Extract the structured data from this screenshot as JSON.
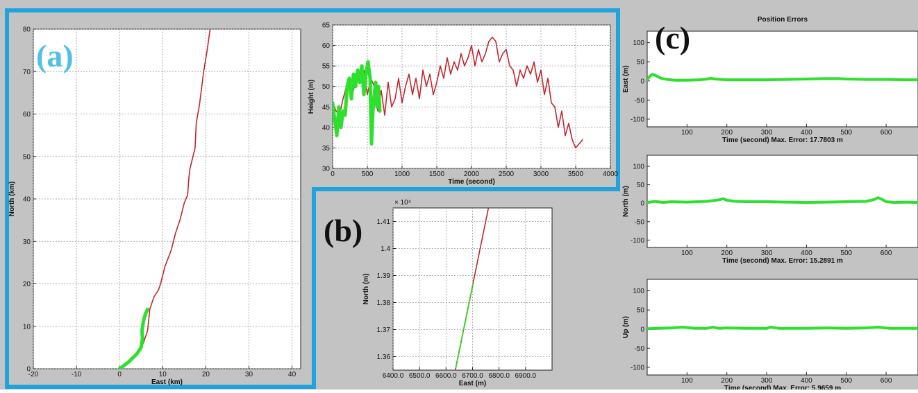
{
  "panels": {
    "a": {
      "label": "(a)",
      "color": "#52bfe6"
    },
    "b": {
      "label": "(b)",
      "color": "#111111"
    },
    "c": {
      "label": "(c)",
      "color": "#111111"
    }
  },
  "colors": {
    "frame": "#1ea3dc",
    "background": "#c3c3c3",
    "track": "#c0272d",
    "estimate": "#2ee02e"
  },
  "chart_data": [
    {
      "id": "track-map",
      "type": "line",
      "title": "",
      "xlabel": "East (km)",
      "ylabel": "North (km)",
      "xlim": [
        -20,
        42
      ],
      "ylim": [
        0,
        80
      ],
      "grid": true,
      "xticks": [
        -20,
        -10,
        0,
        10,
        20,
        30,
        40
      ],
      "yticks": [
        0,
        10,
        20,
        30,
        40,
        50,
        60,
        70,
        80
      ],
      "series": [
        {
          "style": "track",
          "x": [
            0,
            2,
            4,
            5.5,
            6.5,
            7,
            8,
            9,
            9.5,
            10.5,
            12,
            13,
            14,
            15,
            15.8,
            16,
            16.3,
            17.5,
            17.8,
            18.5,
            19,
            19.5,
            20.3,
            21
          ],
          "y": [
            0,
            1.5,
            3.5,
            6,
            9,
            14,
            17,
            18.5,
            20,
            24,
            28,
            32,
            35,
            39,
            41,
            44,
            47,
            52,
            58,
            62,
            66,
            70,
            75,
            80
          ]
        },
        {
          "style": "estimate",
          "x": [
            0,
            2,
            4,
            5,
            5.3,
            5.2,
            5.5,
            6,
            6.5
          ],
          "y": [
            0,
            1.5,
            3.5,
            5,
            7,
            9,
            11,
            13,
            14
          ]
        }
      ]
    },
    {
      "id": "height",
      "type": "line",
      "title": "",
      "xlabel": "Time (second)",
      "ylabel": "Height (m)",
      "xlim": [
        0,
        4000
      ],
      "ylim": [
        30,
        65
      ],
      "grid": true,
      "xticks": [
        0,
        500,
        1000,
        1500,
        2000,
        2500,
        3000,
        3500,
        4000
      ],
      "yticks": [
        30,
        35,
        40,
        45,
        50,
        55,
        60,
        65
      ],
      "series": [
        {
          "style": "track",
          "x": [
            0,
            50,
            100,
            150,
            200,
            250,
            300,
            350,
            400,
            450,
            500,
            550,
            600,
            650,
            700,
            750,
            800,
            850,
            900,
            950,
            1000,
            1050,
            1100,
            1150,
            1200,
            1250,
            1300,
            1350,
            1400,
            1450,
            1500,
            1550,
            1600,
            1650,
            1700,
            1750,
            1800,
            1850,
            1900,
            1950,
            2000,
            2050,
            2100,
            2150,
            2200,
            2250,
            2300,
            2350,
            2400,
            2450,
            2500,
            2550,
            2600,
            2650,
            2700,
            2750,
            2800,
            2850,
            2900,
            2950,
            3000,
            3050,
            3100,
            3150,
            3200,
            3250,
            3300,
            3350,
            3400,
            3450,
            3500,
            3550,
            3600
          ],
          "y": [
            46,
            44,
            43,
            47,
            50,
            52,
            49,
            53,
            51,
            54,
            48,
            52,
            50,
            44,
            49,
            43,
            51,
            45,
            47,
            52,
            46,
            50,
            53,
            48,
            52,
            47,
            54,
            50,
            53,
            48,
            51,
            55,
            52,
            57,
            53,
            56,
            54,
            58,
            55,
            57,
            60,
            55,
            59,
            56,
            58,
            61,
            62,
            61,
            56,
            58,
            59,
            55,
            54,
            50,
            54,
            52,
            55,
            53,
            56,
            51,
            54,
            48,
            52,
            46,
            45,
            40,
            44,
            38,
            41,
            37,
            35,
            36,
            37
          ]
        },
        {
          "style": "estimate",
          "x": [
            0,
            30,
            60,
            90,
            120,
            150,
            180,
            210,
            240,
            270,
            300,
            330,
            360,
            390,
            420,
            450,
            480,
            510,
            540,
            560,
            580,
            600,
            620,
            640,
            660,
            680
          ],
          "y": [
            46,
            42,
            38,
            45,
            40,
            44,
            43,
            50,
            52,
            47,
            53,
            50,
            54,
            51,
            55,
            48,
            53,
            56,
            52,
            36,
            44,
            48,
            51,
            45,
            50,
            44
          ]
        }
      ]
    },
    {
      "id": "zoom",
      "type": "line",
      "title": "",
      "xlabel": "East (m)",
      "ylabel": "North (m)",
      "exponent": "× 10⁴",
      "xlim": [
        6400,
        7000
      ],
      "ylim": [
        1.355,
        1.415
      ],
      "grid": true,
      "xticks": [
        6400,
        6500,
        6600,
        6700,
        6800,
        6900
      ],
      "yticks": [
        1.36,
        1.37,
        1.38,
        1.39,
        1.4,
        1.41
      ],
      "series": [
        {
          "style": "track",
          "x": [
            6635,
            6760
          ],
          "y": [
            1.355,
            1.415
          ]
        },
        {
          "style": "estimate-dashed",
          "x": [
            6637,
            6702
          ],
          "y": [
            1.356,
            1.387
          ]
        }
      ]
    },
    {
      "id": "err-east",
      "type": "line",
      "title": "Position Errors",
      "xlabel": "Time (second)   Max. Error: 17.7803 m",
      "ylabel": "East (m)",
      "xlim": [
        0,
        680
      ],
      "ylim": [
        -120,
        130
      ],
      "grid": false,
      "xticks": [
        100,
        200,
        300,
        400,
        500,
        600
      ],
      "yticks": [
        -100,
        -50,
        0,
        50,
        100
      ],
      "series": [
        {
          "style": "estimate",
          "x": [
            0,
            5,
            12,
            18,
            25,
            35,
            50,
            70,
            100,
            130,
            150,
            160,
            170,
            200,
            250,
            300,
            350,
            400,
            450,
            480,
            500,
            550,
            600,
            650,
            680
          ],
          "y": [
            3,
            10,
            17,
            16,
            12,
            7,
            4,
            2,
            2,
            3,
            5,
            7,
            5,
            3,
            3,
            3,
            4,
            5,
            6,
            6,
            5,
            4,
            4,
            3,
            3
          ]
        }
      ]
    },
    {
      "id": "err-north",
      "type": "line",
      "title": "",
      "xlabel": "Time (second)   Max. Error: 15.2891 m",
      "ylabel": "North (m)",
      "xlim": [
        0,
        680
      ],
      "ylim": [
        -120,
        130
      ],
      "grid": false,
      "xticks": [
        100,
        200,
        300,
        400,
        500,
        600
      ],
      "yticks": [
        -100,
        -50,
        0,
        50,
        100
      ],
      "series": [
        {
          "style": "estimate",
          "x": [
            0,
            20,
            40,
            60,
            100,
            150,
            180,
            190,
            200,
            220,
            250,
            300,
            350,
            400,
            450,
            500,
            550,
            570,
            580,
            590,
            600,
            620,
            650,
            680
          ],
          "y": [
            2,
            5,
            2,
            4,
            3,
            5,
            9,
            12,
            8,
            5,
            4,
            4,
            3,
            2,
            3,
            4,
            5,
            10,
            15,
            10,
            4,
            2,
            3,
            2
          ]
        }
      ]
    },
    {
      "id": "err-up",
      "type": "line",
      "title": "",
      "xlabel": "Time (second)   Max. Error: 5.9659 m",
      "ylabel": "Up (m)",
      "xlim": [
        0,
        680
      ],
      "ylim": [
        -120,
        130
      ],
      "grid": false,
      "xticks": [
        100,
        200,
        300,
        400,
        500,
        600
      ],
      "yticks": [
        -100,
        -50,
        0,
        50,
        100
      ],
      "series": [
        {
          "style": "estimate",
          "x": [
            0,
            30,
            60,
            90,
            100,
            120,
            150,
            165,
            180,
            200,
            250,
            300,
            310,
            330,
            400,
            450,
            500,
            550,
            580,
            590,
            610,
            650,
            680
          ],
          "y": [
            1,
            2,
            3,
            5,
            4,
            2,
            2,
            5,
            2,
            3,
            2,
            2,
            5,
            2,
            2,
            3,
            2,
            3,
            5,
            4,
            2,
            2,
            2
          ]
        }
      ]
    }
  ]
}
